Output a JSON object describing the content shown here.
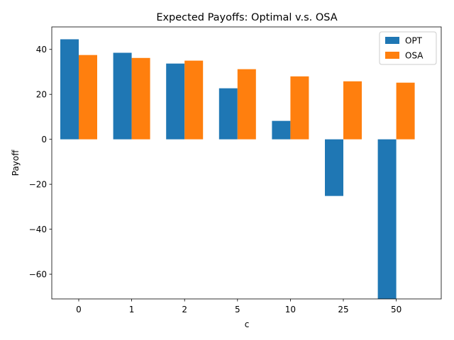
{
  "chart_data": {
    "type": "bar",
    "title": "Expected Payoffs: Optimal v.s. OSA",
    "xlabel": "c",
    "ylabel": "Payoff",
    "categories": [
      "0",
      "1",
      "2",
      "5",
      "10",
      "25",
      "50"
    ],
    "series": [
      {
        "name": "OPT",
        "color": "#1f77b4",
        "values": [
          44.5,
          38.5,
          33.7,
          22.7,
          8.2,
          -25.2,
          -71.0
        ]
      },
      {
        "name": "OSA",
        "color": "#ff7f0e",
        "values": [
          37.5,
          36.2,
          35.0,
          31.2,
          28.0,
          25.8,
          25.2
        ]
      }
    ],
    "ylim": [
      -71,
      50
    ],
    "yticks": [
      40,
      20,
      0,
      -20,
      -40,
      -60
    ],
    "yticklabels": [
      "40",
      "20",
      "0",
      "−20",
      "−40",
      "−60"
    ],
    "grid": false,
    "legend_position": "top-right"
  }
}
